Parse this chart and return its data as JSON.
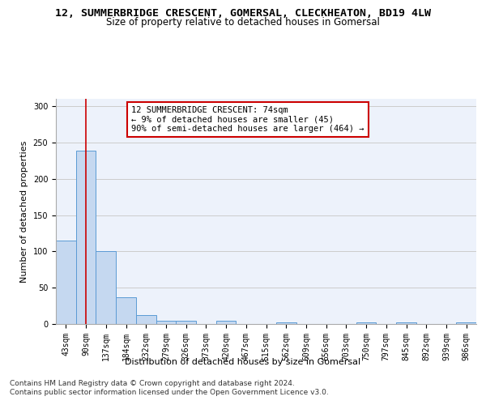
{
  "title": "12, SUMMERBRIDGE CRESCENT, GOMERSAL, CLECKHEATON, BD19 4LW",
  "subtitle": "Size of property relative to detached houses in Gomersal",
  "xlabel": "Distribution of detached houses by size in Gomersal",
  "ylabel": "Number of detached properties",
  "categories": [
    "43sqm",
    "90sqm",
    "137sqm",
    "184sqm",
    "232sqm",
    "279sqm",
    "326sqm",
    "373sqm",
    "420sqm",
    "467sqm",
    "515sqm",
    "562sqm",
    "609sqm",
    "656sqm",
    "703sqm",
    "750sqm",
    "797sqm",
    "845sqm",
    "892sqm",
    "939sqm",
    "986sqm"
  ],
  "values": [
    115,
    239,
    101,
    37,
    12,
    5,
    4,
    0,
    4,
    0,
    0,
    2,
    0,
    0,
    0,
    2,
    0,
    2,
    0,
    0,
    2
  ],
  "bar_color": "#c5d8f0",
  "bar_edge_color": "#5b9bd5",
  "annotation_text": "12 SUMMERBRIDGE CRESCENT: 74sqm\n← 9% of detached houses are smaller (45)\n90% of semi-detached houses are larger (464) →",
  "annotation_box_color": "#ffffff",
  "annotation_box_edge_color": "#cc0000",
  "ylim": [
    0,
    310
  ],
  "yticks": [
    0,
    50,
    100,
    150,
    200,
    250,
    300
  ],
  "grid_color": "#cccccc",
  "background_color": "#edf2fb",
  "footer_line1": "Contains HM Land Registry data © Crown copyright and database right 2024.",
  "footer_line2": "Contains public sector information licensed under the Open Government Licence v3.0.",
  "title_fontsize": 9.5,
  "subtitle_fontsize": 8.5,
  "xlabel_fontsize": 8,
  "ylabel_fontsize": 8,
  "tick_fontsize": 7,
  "annotation_fontsize": 7.5,
  "footer_fontsize": 6.5,
  "red_line_x": 1.0
}
